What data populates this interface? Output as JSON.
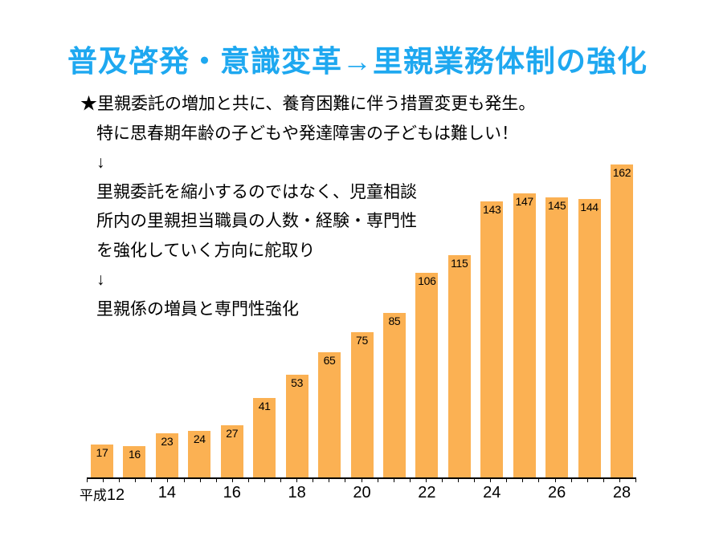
{
  "title": {
    "text": "普及啓発・意識変革→里親業務体制の強化",
    "color": "#1EA8F0"
  },
  "notes": {
    "lines": [
      "★里親委託の増加と共に、養育困難に伴う措置変更も発生。",
      "特に思春期年齢の子どもや発達障害の子どもは難しい！",
      "↓",
      "里親委託を縮小するのではなく、児童相談",
      "所内の里親担当職員の人数・経験・専門性",
      "を強化していく方向に舵取り",
      "↓",
      "里親係の増員と専門性強化"
    ]
  },
  "chart_data": {
    "type": "bar",
    "categories": [
      "平成12",
      "13",
      "14",
      "15",
      "16",
      "17",
      "18",
      "19",
      "20",
      "21",
      "22",
      "23",
      "24",
      "25",
      "26",
      "27",
      "28"
    ],
    "values": [
      17,
      16,
      23,
      24,
      27,
      41,
      53,
      65,
      75,
      85,
      106,
      115,
      143,
      147,
      145,
      144,
      162
    ],
    "x_tick_labels_shown": [
      "平成12",
      "14",
      "16",
      "18",
      "20",
      "22",
      "24",
      "26",
      "28"
    ],
    "era_prefix": "平成",
    "title": "",
    "xlabel": "",
    "ylabel": "",
    "ylim": [
      0,
      166
    ],
    "grid": false,
    "legend": false,
    "y_axis_shown": false,
    "value_labels_position": "inside-top",
    "bar_color": "#FBB153",
    "value_label_color": "#000000",
    "axis_color": "#000000"
  }
}
